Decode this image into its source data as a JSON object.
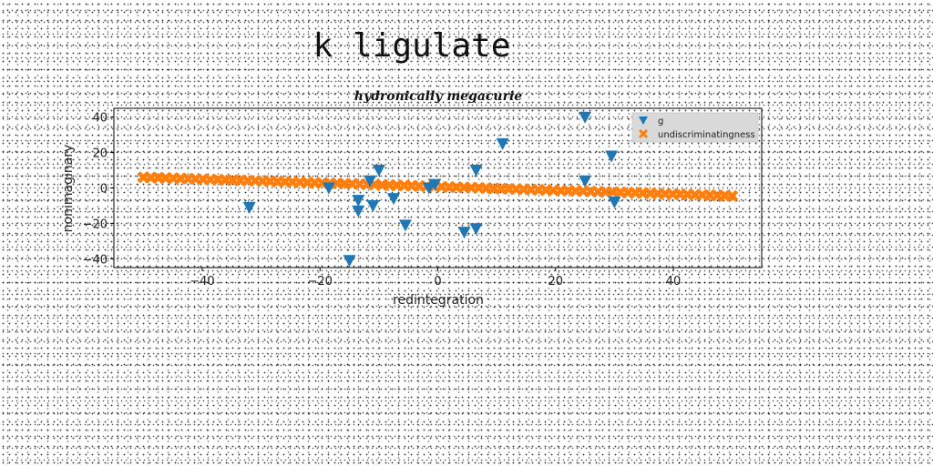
{
  "page_title": "k ligulate",
  "chart_data": {
    "type": "scatter",
    "title": "hydronically megacurie",
    "xlabel": "redintegration",
    "ylabel": "nonimaginary",
    "xlim": [
      -55,
      55
    ],
    "ylim": [
      -45,
      45
    ],
    "xticks": [
      -40,
      -20,
      0,
      20,
      40
    ],
    "yticks": [
      -40,
      -20,
      0,
      20,
      40
    ],
    "grid": false,
    "legend_position": "top-right",
    "series": [
      {
        "name": "g",
        "marker": "triangle-down",
        "color": "#1f77b4",
        "x": [
          -32,
          -18.5,
          -15,
          -13.5,
          -13.5,
          -11.5,
          -11,
          -10,
          -7.5,
          -5.5,
          -1.5,
          -0.5,
          4.5,
          6.5,
          6.5,
          11,
          25,
          25,
          29.5,
          30
        ],
        "y": [
          -11,
          0,
          -41,
          -13,
          -7,
          4,
          -10,
          10,
          -6,
          -21,
          0,
          2,
          -25,
          -23,
          10,
          25,
          4,
          40,
          18,
          -8
        ]
      },
      {
        "name": "undiscriminatingness",
        "marker": "x",
        "color": "#ff7f0e",
        "x_range": [
          -50,
          50
        ],
        "points": 80,
        "y_start": 6,
        "y_end": -4.5
      }
    ]
  }
}
